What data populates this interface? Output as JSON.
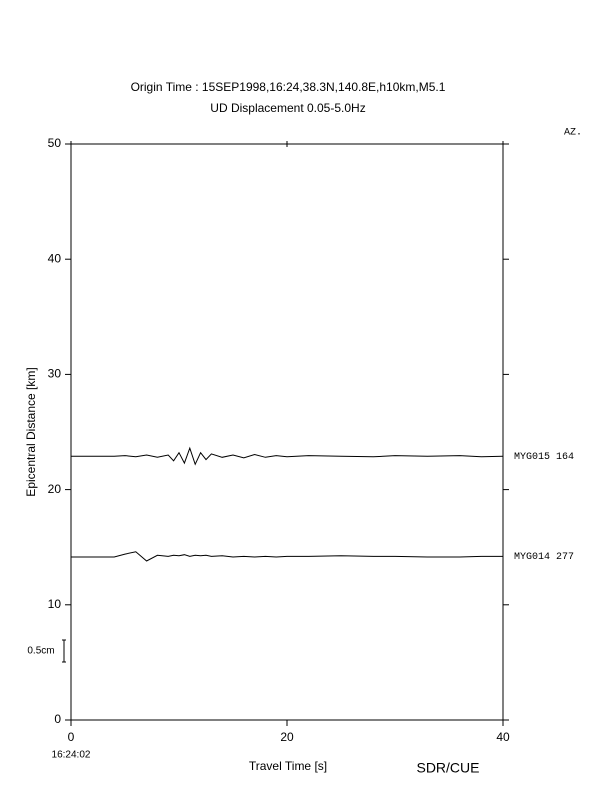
{
  "chart_data": {
    "type": "record-section",
    "title": "Origin Time : 15SEP1998,16:24,38.3N,140.8E,h10km,M5.1",
    "subtitle": "UD Displacement 0.05-5.0Hz",
    "azimuth_header": "AZ.",
    "x_label": "Travel Time [s]",
    "y_label": "Epicentral Distance [km]",
    "start_time": "16:24:02",
    "scale_label": "0.5cm",
    "credit": "SDR/CUE",
    "xlim": [
      0,
      40
    ],
    "ylim": [
      0,
      50
    ],
    "xticks": [
      0,
      20,
      40
    ],
    "yticks": [
      0,
      10,
      20,
      30,
      40,
      50
    ],
    "series": [
      {
        "name": "MYG015 164",
        "color": "#000000",
        "x": [
          0,
          4,
          5,
          6,
          7,
          8,
          9,
          9.5,
          10,
          10.5,
          11,
          11.5,
          12,
          12.5,
          13,
          14,
          15,
          16,
          17,
          18,
          19,
          20,
          22,
          25,
          28,
          30,
          33,
          36,
          38,
          40
        ],
        "values": [
          22.9,
          22.9,
          22.95,
          22.85,
          23.0,
          22.8,
          23.0,
          22.5,
          23.2,
          22.3,
          23.6,
          22.2,
          23.2,
          22.6,
          23.1,
          22.8,
          23.0,
          22.75,
          23.05,
          22.8,
          22.95,
          22.85,
          22.95,
          22.9,
          22.85,
          22.95,
          22.9,
          22.95,
          22.85,
          22.9
        ]
      },
      {
        "name": "MYG014 277",
        "color": "#000000",
        "x": [
          0,
          4,
          5,
          6,
          7,
          8,
          9,
          9.5,
          10,
          10.5,
          11,
          11.5,
          12,
          12.5,
          13,
          14,
          15,
          16,
          17,
          18,
          19,
          20,
          22,
          25,
          28,
          30,
          33,
          36,
          38,
          40
        ],
        "values": [
          14.15,
          14.15,
          14.4,
          14.6,
          13.8,
          14.3,
          14.2,
          14.3,
          14.25,
          14.35,
          14.2,
          14.3,
          14.25,
          14.3,
          14.2,
          14.25,
          14.15,
          14.2,
          14.15,
          14.2,
          14.15,
          14.2,
          14.2,
          14.25,
          14.2,
          14.2,
          14.15,
          14.15,
          14.2,
          14.2
        ]
      }
    ]
  }
}
